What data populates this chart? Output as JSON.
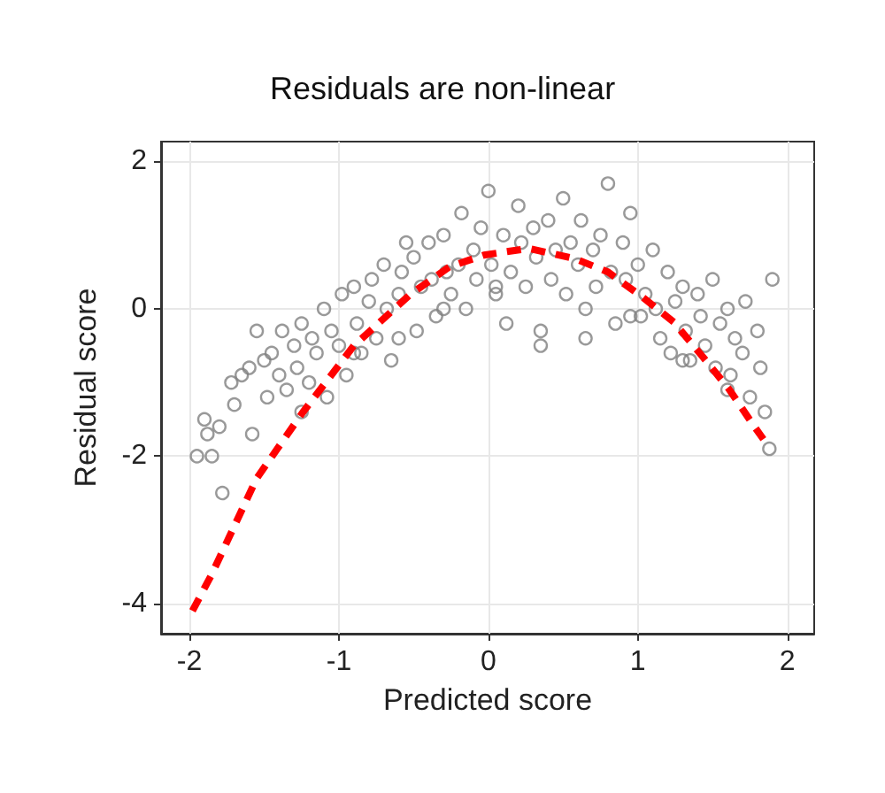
{
  "chart_data": {
    "type": "scatter",
    "title": "Residuals are non-linear",
    "xlabel": "Predicted score",
    "ylabel": "Residual score",
    "xlim": [
      -2.19,
      2.18
    ],
    "ylim": [
      -4.41,
      2.27
    ],
    "xticks": [
      -2,
      -1,
      0,
      1,
      2
    ],
    "yticks": [
      -4,
      -2,
      0,
      2
    ],
    "grid": true,
    "series": [
      {
        "color": "#808080",
        "marker": "circle",
        "x": [
          -1.95,
          -1.9,
          -1.88,
          -1.85,
          -1.8,
          -1.78,
          -1.72,
          -1.7,
          -1.65,
          -1.6,
          -1.58,
          -1.55,
          -1.5,
          -1.48,
          -1.45,
          -1.4,
          -1.38,
          -1.35,
          -1.3,
          -1.28,
          -1.25,
          -1.2,
          -1.18,
          -1.15,
          -1.1,
          -1.08,
          -1.05,
          -1.0,
          -0.98,
          -0.95,
          -0.9,
          -0.88,
          -0.85,
          -0.8,
          -0.78,
          -0.75,
          -0.7,
          -0.68,
          -0.65,
          -0.6,
          -0.58,
          -0.55,
          -0.5,
          -0.48,
          -0.45,
          -0.4,
          -0.38,
          -0.35,
          -0.3,
          -0.28,
          -0.25,
          -0.2,
          -0.18,
          -0.15,
          -0.1,
          -0.08,
          -0.05,
          0.0,
          0.02,
          0.05,
          0.1,
          0.12,
          0.15,
          0.2,
          0.22,
          0.25,
          0.3,
          0.32,
          0.35,
          0.4,
          0.42,
          0.45,
          0.5,
          0.52,
          0.55,
          0.6,
          0.62,
          0.65,
          0.7,
          0.72,
          0.75,
          0.8,
          0.82,
          0.85,
          0.9,
          0.92,
          0.95,
          1.0,
          1.02,
          1.05,
          1.1,
          1.12,
          1.15,
          1.2,
          1.22,
          1.25,
          1.3,
          1.32,
          1.35,
          1.4,
          1.42,
          1.45,
          1.5,
          1.52,
          1.55,
          1.6,
          1.62,
          1.65,
          1.7,
          1.72,
          1.75,
          1.8,
          1.82,
          1.85,
          1.88,
          1.9,
          -1.25,
          -0.9,
          -0.6,
          -0.3,
          0.05,
          0.35,
          0.65,
          0.95,
          1.3,
          1.6
        ],
        "values": [
          -2.0,
          -1.5,
          -1.7,
          -2.0,
          -1.6,
          -2.5,
          -1.0,
          -1.3,
          -0.9,
          -0.8,
          -1.7,
          -0.3,
          -0.7,
          -1.2,
          -0.6,
          -0.9,
          -0.3,
          -1.1,
          -0.5,
          -0.8,
          -0.2,
          -1.0,
          -0.4,
          -0.6,
          0.0,
          -1.2,
          -0.3,
          -0.5,
          0.2,
          -0.9,
          0.3,
          -0.2,
          -0.6,
          0.1,
          0.4,
          -0.4,
          0.6,
          0.0,
          -0.7,
          0.2,
          0.5,
          0.9,
          0.7,
          -0.3,
          0.3,
          0.9,
          0.4,
          -0.1,
          1.0,
          0.5,
          0.2,
          0.6,
          1.3,
          0.0,
          0.8,
          0.4,
          1.1,
          1.6,
          0.6,
          0.2,
          1.0,
          -0.2,
          0.5,
          1.4,
          0.9,
          0.3,
          1.1,
          0.7,
          -0.5,
          1.2,
          0.4,
          0.8,
          1.5,
          0.2,
          0.9,
          0.6,
          1.2,
          -0.4,
          0.8,
          0.3,
          1.0,
          1.7,
          0.5,
          -0.2,
          0.9,
          0.4,
          1.3,
          0.6,
          -0.1,
          0.2,
          0.8,
          0.0,
          -0.4,
          0.5,
          -0.6,
          0.1,
          0.3,
          -0.3,
          -0.7,
          0.2,
          -0.1,
          -0.5,
          0.4,
          -0.8,
          -0.2,
          0.0,
          -0.9,
          -0.4,
          -0.6,
          0.1,
          -1.2,
          -0.3,
          -0.8,
          -1.4,
          -1.9,
          0.4,
          -1.4,
          -0.6,
          -0.4,
          0.0,
          0.3,
          -0.3,
          0.0,
          -0.1,
          -0.7,
          -1.1
        ]
      },
      {
        "type": "line",
        "color": "#ff0000",
        "line_style": "dashed",
        "marker": "none",
        "x": [
          -1.98,
          -1.85,
          -1.55,
          -1.24,
          -0.9,
          -0.52,
          -0.26,
          -0.03,
          0.27,
          0.58,
          0.8,
          1.03,
          1.24,
          1.43,
          1.61,
          1.78,
          1.84
        ],
        "values": [
          -4.1,
          -3.6,
          -2.3,
          -1.4,
          -0.5,
          0.2,
          0.57,
          0.73,
          0.82,
          0.68,
          0.5,
          0.16,
          -0.18,
          -0.64,
          -1.09,
          -1.6,
          -1.77
        ]
      }
    ]
  }
}
